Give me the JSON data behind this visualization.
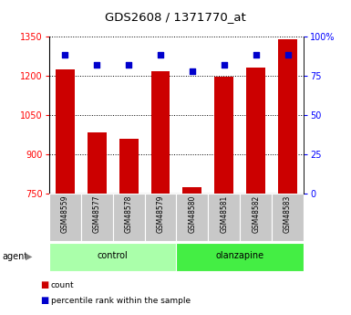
{
  "title": "GDS2608 / 1371770_at",
  "samples": [
    "GSM48559",
    "GSM48577",
    "GSM48578",
    "GSM48579",
    "GSM48580",
    "GSM48581",
    "GSM48582",
    "GSM48583"
  ],
  "counts": [
    1225,
    985,
    960,
    1215,
    775,
    1195,
    1230,
    1340
  ],
  "percentiles": [
    88,
    82,
    82,
    88,
    78,
    82,
    88,
    88
  ],
  "bar_color": "#CC0000",
  "dot_color": "#0000CC",
  "ylim_left": [
    750,
    1350
  ],
  "ylim_right": [
    0,
    100
  ],
  "yticks_left": [
    750,
    900,
    1050,
    1200,
    1350
  ],
  "yticks_right": [
    0,
    25,
    50,
    75,
    100
  ],
  "ytick_labels_right": [
    "0",
    "25",
    "50",
    "75",
    "100%"
  ],
  "control_color": "#aaffaa",
  "olanzapine_color": "#44ee44",
  "tick_bg_color": "#c8c8c8"
}
